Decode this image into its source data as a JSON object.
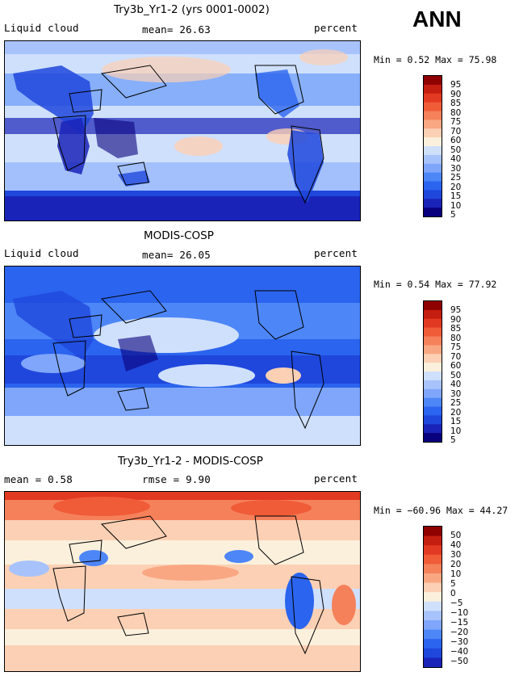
{
  "season": "ANN",
  "colors": {
    "pos_scale": [
      "#08007d",
      "#1a23b8",
      "#1f47dc",
      "#2b64ee",
      "#4d86f7",
      "#7fa6fb",
      "#a8c3fb",
      "#cfe0fc",
      "#fbf0dc",
      "#fcd0b4",
      "#f9a782",
      "#f5815b",
      "#f05b38",
      "#e23a22",
      "#c41e10",
      "#8f0000"
    ],
    "diff_scale": [
      "#08007d",
      "#1a23b8",
      "#1f47dc",
      "#2b64ee",
      "#4d86f7",
      "#7fa6fb",
      "#a8c3fb",
      "#cfe0fc",
      "#fbf0dc",
      "#fcd0b4",
      "#f9a782",
      "#f5815b",
      "#f05b38",
      "#e23a22",
      "#c41e10",
      "#8f0000"
    ]
  },
  "panels": [
    {
      "title": "Try3b_Yr1-2 (yrs 0001-0002)",
      "left_label": "Liquid cloud",
      "center_label": "mean=  26.63",
      "units": "percent",
      "minmax": "Min =   0.52 Max =  75.98",
      "colorbar_labels": [
        "95",
        "90",
        "85",
        "80",
        "75",
        "70",
        "60",
        "50",
        "40",
        "30",
        "25",
        "20",
        "15",
        "10",
        "5"
      ]
    },
    {
      "title": "MODIS-COSP",
      "left_label": "Liquid cloud",
      "center_label": "mean=  26.05",
      "units": "percent",
      "minmax": "Min =   0.54 Max =  77.92",
      "colorbar_labels": [
        "95",
        "90",
        "85",
        "80",
        "75",
        "70",
        "60",
        "50",
        "40",
        "30",
        "25",
        "20",
        "15",
        "10",
        "5"
      ]
    },
    {
      "title": "Try3b_Yr1-2 - MODIS-COSP",
      "left_label": "mean =   0.58",
      "center_label": "rmse =   9.90",
      "units": "percent",
      "minmax": "Min = −60.96 Max =  44.27",
      "colorbar_labels": [
        "50",
        "40",
        "30",
        "20",
        "10",
        "5",
        "0",
        "−5",
        "−10",
        "−15",
        "−20",
        "−30",
        "−40",
        "−50"
      ]
    }
  ],
  "chart_data": [
    {
      "type": "heatmap",
      "title": "Try3b_Yr1-2 (yrs 0001-0002)",
      "variable": "Liquid cloud",
      "units": "percent",
      "mean": 26.63,
      "min": 0.52,
      "max": 75.98,
      "levels": [
        5,
        10,
        15,
        20,
        25,
        30,
        40,
        50,
        60,
        70,
        75,
        80,
        85,
        90,
        95
      ]
    },
    {
      "type": "heatmap",
      "title": "MODIS-COSP",
      "variable": "Liquid cloud",
      "units": "percent",
      "mean": 26.05,
      "min": 0.54,
      "max": 77.92,
      "levels": [
        5,
        10,
        15,
        20,
        25,
        30,
        40,
        50,
        60,
        70,
        75,
        80,
        85,
        90,
        95
      ]
    },
    {
      "type": "heatmap",
      "title": "Try3b_Yr1-2 - MODIS-COSP",
      "units": "percent",
      "mean": 0.58,
      "rmse": 9.9,
      "min": -60.96,
      "max": 44.27,
      "levels": [
        -50,
        -40,
        -30,
        -20,
        -15,
        -10,
        -5,
        0,
        5,
        10,
        20,
        30,
        40,
        50
      ]
    }
  ]
}
